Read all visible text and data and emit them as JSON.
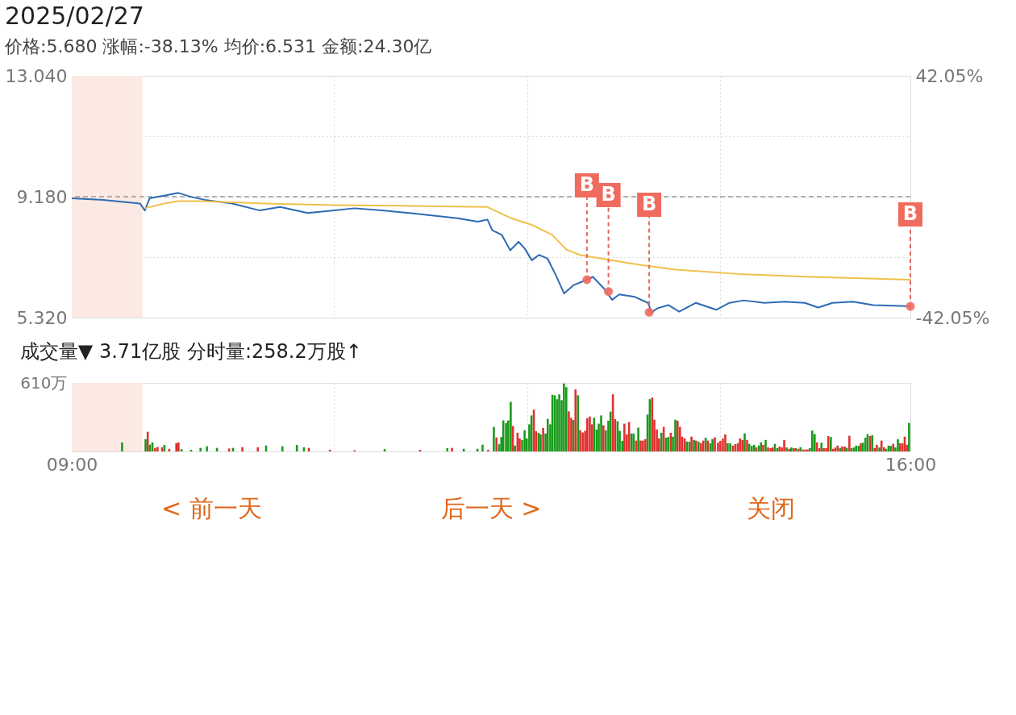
{
  "chart_data": [
    {
      "type": "line",
      "title": "2025/02/27",
      "subtitle": "价格:5.680   涨幅:-38.13%   均价:6.531   金额:24.30亿",
      "xlim": [
        9,
        16
      ],
      "xticks": [
        {
          "value": 9,
          "label": null
        },
        {
          "value": 11.19,
          "label": null
        },
        {
          "value": 12.8,
          "label": null
        },
        {
          "value": 14.41,
          "label": null
        },
        {
          "value": 16,
          "label": null
        }
      ],
      "ylim": [
        5.32,
        13.04
      ],
      "yticks": [
        {
          "value": 13.04,
          "label": "13.040"
        },
        {
          "value": 11.11,
          "label": null
        },
        {
          "value": 9.18,
          "label": "9.180"
        },
        {
          "value": 7.25,
          "label": null
        },
        {
          "value": 5.32,
          "label": "5.320"
        }
      ],
      "y2lim": [
        -42.05,
        42.05
      ],
      "y2ticks": [
        {
          "value": 42.05,
          "label": "42.05%"
        },
        {
          "value": -42.05,
          "label": "-42.05%"
        }
      ],
      "tick_labels": "y",
      "grid": true,
      "bands": [
        {
          "axis": "x",
          "from": 9,
          "to": 9.59,
          "color": "#fde9e3"
        }
      ],
      "ref_lines": [
        {
          "axis": "y",
          "value": 9.18,
          "color": "#999999",
          "line_style": "dashed"
        }
      ],
      "series": [
        {
          "type": "line",
          "color": "#2e6bb5",
          "x": [
            9.0,
            9.26,
            9.57,
            9.61,
            9.65,
            9.77,
            9.89,
            10.0,
            10.11,
            10.34,
            10.57,
            10.74,
            10.97,
            11.19,
            11.36,
            11.59,
            11.76,
            11.99,
            12.22,
            12.39,
            12.47,
            12.51,
            12.59,
            12.66,
            12.73,
            12.78,
            12.84,
            12.9,
            12.97,
            13.04,
            13.11,
            13.19,
            13.3,
            13.35,
            13.44,
            13.51,
            13.57,
            13.7,
            13.81,
            13.84,
            13.89,
            13.98,
            14.07,
            14.21,
            14.38,
            14.49,
            14.61,
            14.78,
            14.95,
            15.12,
            15.23,
            15.35,
            15.52,
            15.69,
            15.86,
            16.0
          ],
          "values": [
            9.13,
            9.08,
            8.96,
            8.74,
            9.13,
            9.21,
            9.3,
            9.17,
            9.08,
            8.96,
            8.74,
            8.85,
            8.66,
            8.74,
            8.81,
            8.74,
            8.68,
            8.59,
            8.49,
            8.38,
            8.45,
            8.11,
            7.96,
            7.47,
            7.74,
            7.53,
            7.15,
            7.32,
            7.21,
            6.68,
            6.09,
            6.36,
            6.53,
            6.62,
            6.26,
            5.89,
            6.06,
            5.98,
            5.79,
            5.49,
            5.62,
            5.72,
            5.51,
            5.79,
            5.57,
            5.79,
            5.87,
            5.79,
            5.83,
            5.79,
            5.64,
            5.79,
            5.83,
            5.72,
            5.7,
            5.68
          ]
        },
        {
          "type": "line",
          "color": "#f0c04a",
          "x": [
            9.61,
            9.77,
            9.89,
            10.05,
            10.62,
            11.19,
            11.76,
            12.47,
            12.67,
            12.84,
            13.01,
            13.13,
            13.24,
            13.47,
            13.75,
            14.04,
            14.61,
            15.17,
            16.0
          ],
          "values": [
            8.81,
            8.96,
            9.04,
            9.04,
            8.96,
            8.91,
            8.89,
            8.85,
            8.49,
            8.28,
            7.96,
            7.49,
            7.32,
            7.17,
            7.0,
            6.85,
            6.7,
            6.62,
            6.53
          ]
        }
      ],
      "annotations": [
        {
          "text": "B",
          "x": 13.3,
          "y": 6.53
        },
        {
          "text": "B",
          "x": 13.48,
          "y": 6.15
        },
        {
          "text": "B",
          "x": 13.82,
          "y": 5.49
        },
        {
          "text": "B",
          "x": 16.0,
          "y": 5.68
        }
      ]
    },
    {
      "type": "bar",
      "title": "成交量▼  3.71亿股     分时量:258.2万股↑",
      "xlim": [
        9,
        16
      ],
      "xticks": [
        {
          "value": 9,
          "label": "09:00"
        },
        {
          "value": 11.19,
          "label": null
        },
        {
          "value": 12.8,
          "label": null
        },
        {
          "value": 14.41,
          "label": null
        },
        {
          "value": 16,
          "label": "16:00"
        }
      ],
      "ylim": [
        0,
        610
      ],
      "yticks": [
        {
          "value": 610,
          "label": "610万"
        }
      ],
      "grid": "x",
      "bands": [
        {
          "axis": "x",
          "from": 9,
          "to": 9.59,
          "color": "#fde9e3"
        }
      ],
      "series": [
        {
          "color": "#1a9a1a",
          "x": [
            9.42,
            9.616,
            9.652,
            9.673,
            9.773,
            9.916,
            9.996,
            10.075,
            10.128,
            10.212,
            10.346,
            10.622,
            10.758,
            10.879,
            10.938,
            11.612,
            12.135,
            12.272,
            12.386,
            12.429,
            12.523,
            12.568,
            12.586,
            12.602,
            12.625,
            12.643,
            12.664,
            12.7,
            12.759,
            12.78,
            12.798,
            12.819,
            12.837,
            12.896,
            12.914,
            12.955,
            12.973,
            12.994,
            13.012,
            13.032,
            13.051,
            13.069,
            13.089,
            13.108,
            13.128,
            13.187,
            13.226,
            13.36,
            13.381,
            13.399,
            13.419,
            13.458,
            13.479,
            13.497,
            13.556,
            13.574,
            13.595,
            13.672,
            13.69,
            13.729,
            13.806,
            13.825,
            13.922,
            13.961,
            13.979,
            14.018,
            14.038,
            14.134,
            14.155,
            14.193,
            14.232,
            14.291,
            14.33,
            14.348,
            14.475,
            14.496,
            14.617,
            14.655,
            14.676,
            14.696,
            14.735,
            14.753,
            14.792,
            14.869,
            14.89,
            14.967,
            15.006,
            15.044,
            15.083,
            15.161,
            15.181,
            15.201,
            15.258,
            15.336,
            15.413,
            15.47,
            15.509,
            15.529,
            15.547,
            15.568,
            15.604,
            15.625,
            15.643,
            15.682,
            15.741,
            15.798,
            15.818,
            15.836,
            15.875,
            15.896,
            15.989
          ],
          "values": [
            80,
            109,
            60,
            80,
            57,
            20,
            14,
            31,
            46,
            31,
            31,
            52,
            46,
            57,
            37,
            20,
            29,
            23,
            23,
            60,
            218,
            64,
            128,
            276,
            253,
            276,
            441,
            52,
            102,
            189,
            116,
            241,
            320,
            166,
            151,
            160,
            290,
            241,
            503,
            500,
            465,
            508,
            456,
            604,
            572,
            279,
            500,
            299,
            195,
            247,
            320,
            189,
            273,
            354,
            270,
            183,
            93,
            160,
            160,
            212,
            328,
            465,
            166,
            122,
            128,
            131,
            282,
            87,
            87,
            102,
            87,
            122,
            73,
            110,
            73,
            73,
            160,
            67,
            49,
            58,
            52,
            81,
            102,
            67,
            29,
            35,
            35,
            29,
            38,
            29,
            186,
            154,
            78,
            128,
            29,
            29,
            29,
            35,
            52,
            49,
            78,
            122,
            154,
            145,
            35,
            23,
            52,
            49,
            35,
            107,
            253
          ]
        },
        {
          "color": "#e03030",
          "x": [
            9.634,
            9.695,
            9.716,
            9.754,
            9.814,
            9.873,
            9.891,
            10.314,
            10.424,
            10.553,
            10.979,
            11.156,
            11.361,
            11.908,
            12.174,
            12.476,
            12.545,
            12.682,
            12.721,
            12.739,
            12.857,
            12.875,
            12.935,
            13.149,
            13.169,
            13.205,
            13.244,
            13.265,
            13.285,
            13.303,
            13.324,
            13.342,
            13.438,
            13.517,
            13.535,
            13.613,
            13.633,
            13.652,
            13.711,
            13.749,
            13.768,
            13.788,
            13.845,
            13.863,
            13.884,
            13.902,
            13.941,
            14.0,
            14.057,
            14.077,
            14.095,
            14.116,
            14.173,
            14.211,
            14.252,
            14.271,
            14.309,
            14.368,
            14.394,
            14.414,
            14.435,
            14.455,
            14.519,
            14.539,
            14.56,
            14.578,
            14.598,
            14.637,
            14.714,
            14.771,
            14.812,
            14.833,
            14.851,
            14.908,
            14.928,
            14.947,
            14.988,
            15.026,
            15.065,
            15.104,
            15.124,
            15.142,
            15.22,
            15.24,
            15.277,
            15.297,
            15.315,
            15.356,
            15.374,
            15.393,
            15.431,
            15.452,
            15.491,
            15.586,
            15.664,
            15.702,
            15.72,
            15.759,
            15.78,
            15.857,
            15.914,
            15.934,
            15.953,
            15.971
          ],
          "values": [
            175,
            31,
            40,
            37,
            23,
            74,
            80,
            26,
            37,
            37,
            31,
            14,
            11,
            14,
            31,
            14,
            125,
            227,
            166,
            116,
            372,
            180,
            209,
            357,
            299,
            552,
            189,
            168,
            183,
            296,
            311,
            241,
            232,
            508,
            288,
            247,
            151,
            261,
            96,
            96,
            96,
            110,
            479,
            282,
            195,
            116,
            218,
            166,
            273,
            218,
            131,
            116,
            131,
            96,
            73,
            96,
            96,
            125,
            78,
            93,
            116,
            151,
            52,
            64,
            73,
            116,
            102,
            102,
            35,
            58,
            35,
            29,
            35,
            44,
            35,
            102,
            23,
            29,
            23,
            17,
            17,
            17,
            81,
            29,
            29,
            29,
            137,
            23,
            35,
            52,
            44,
            44,
            139,
            73,
            137,
            29,
            58,
            96,
            38,
            67,
            73,
            73,
            131,
            58
          ]
        }
      ],
      "annotations": [
        "< 前一天",
        "后一天 >",
        "关闭"
      ]
    }
  ]
}
